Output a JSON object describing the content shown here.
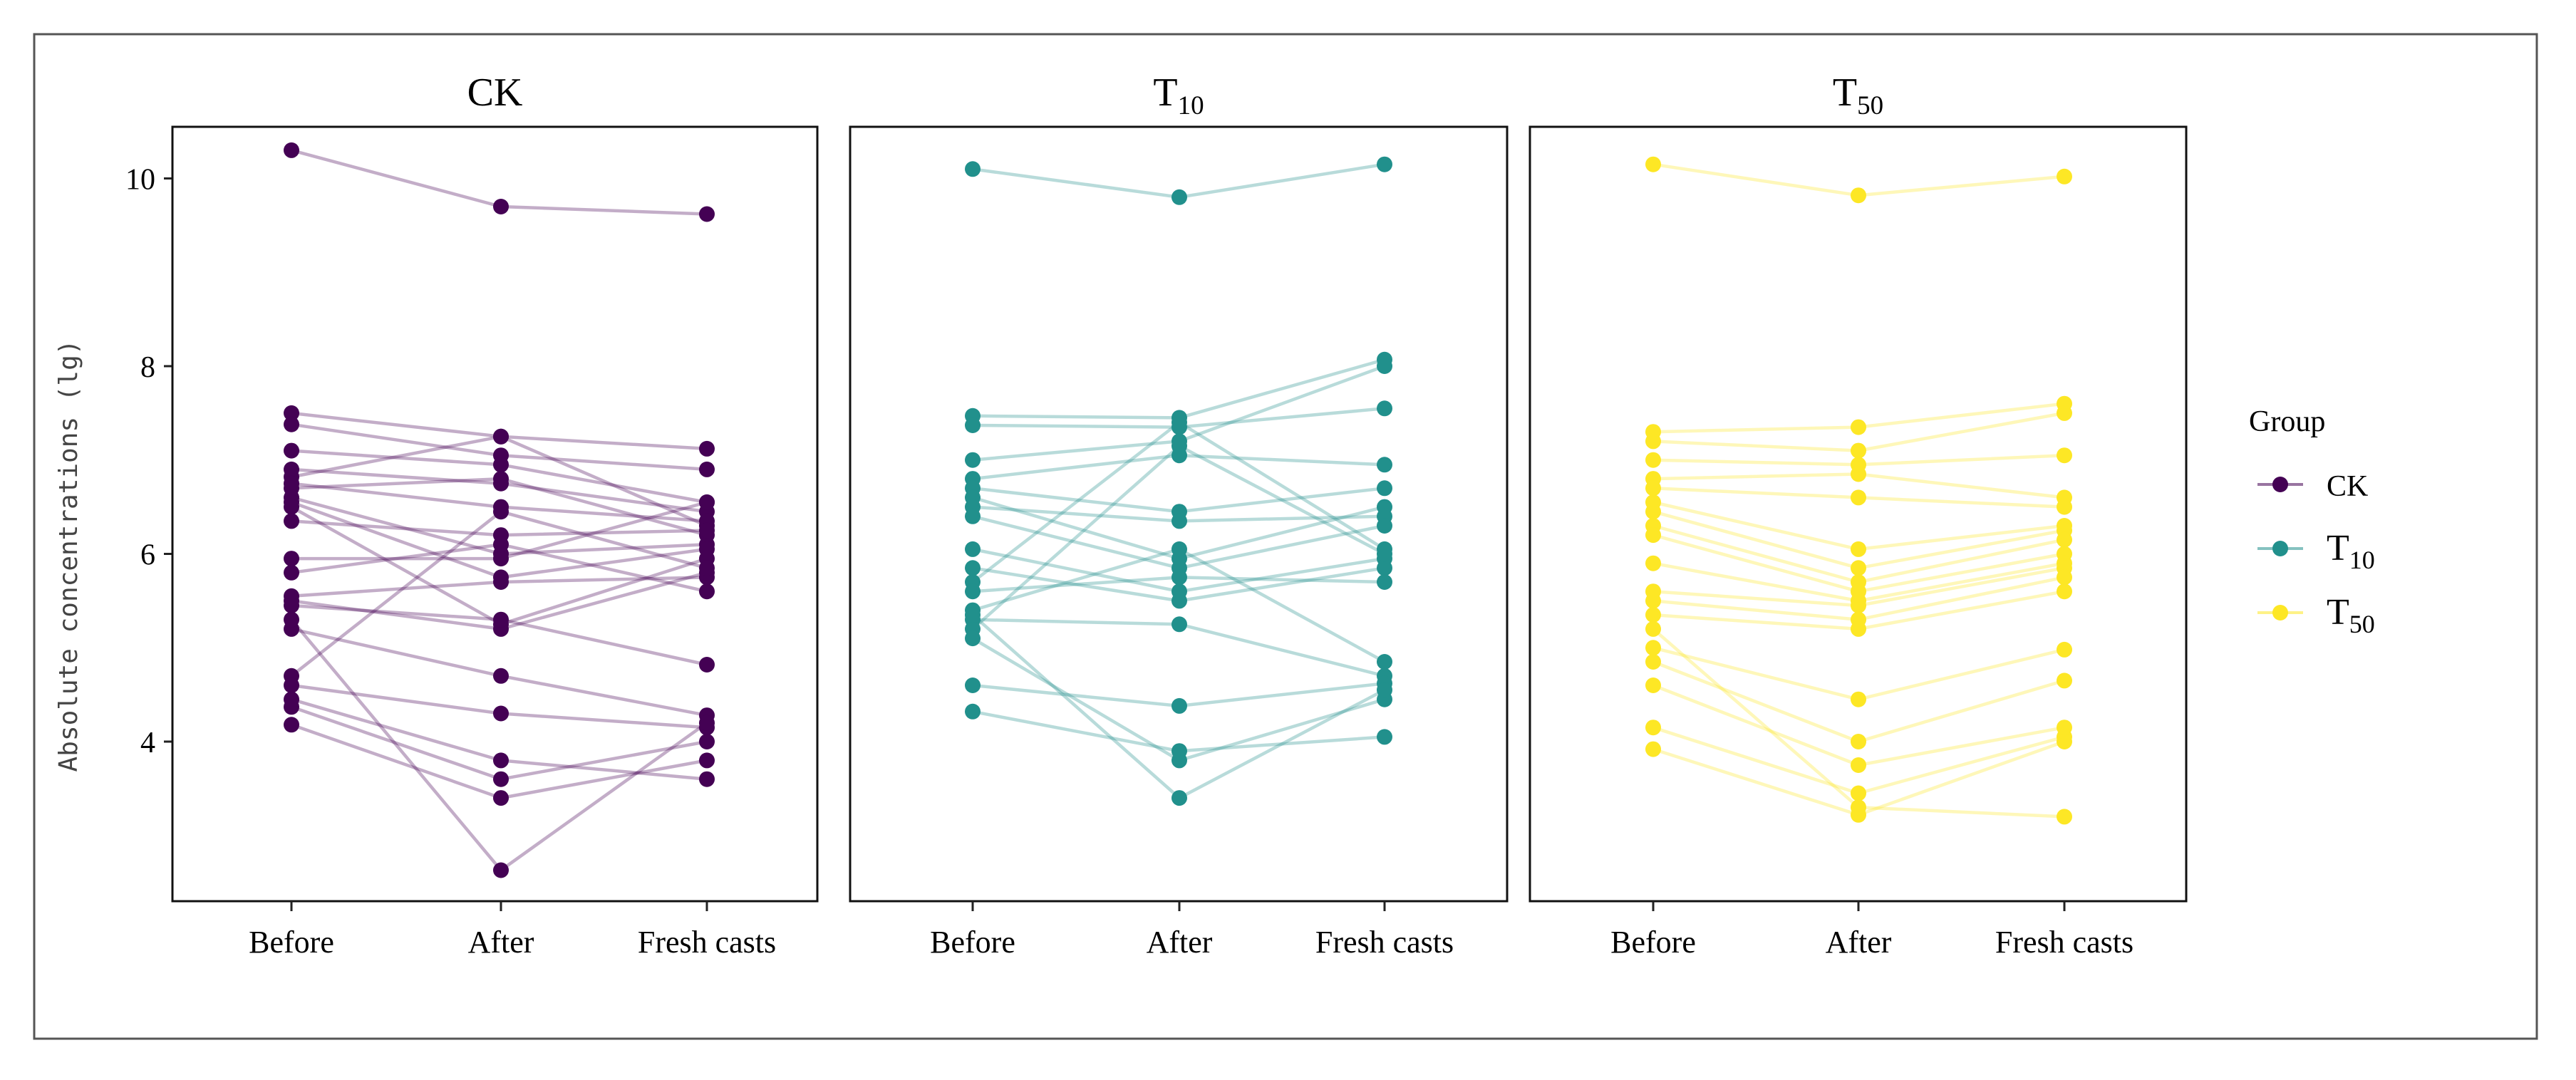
{
  "chart_data": {
    "type": "line",
    "ylabel": "Absolute concentrations (lg)",
    "y_ticks": [
      4,
      6,
      8,
      10
    ],
    "ylim": [
      2.3,
      10.55
    ],
    "categories": [
      "Before",
      "After",
      "Fresh casts"
    ],
    "legend": {
      "title": "Group",
      "placement": "right",
      "entries": [
        {
          "key": "ck",
          "label_main": "CK",
          "label_sub": "",
          "color": "#440154"
        },
        {
          "key": "t10",
          "label_main": "T",
          "label_sub": "10",
          "color": "#21908C"
        },
        {
          "key": "t50",
          "label_main": "T",
          "label_sub": "50",
          "color": "#FDE725"
        }
      ]
    },
    "panels": [
      {
        "key": "ck",
        "title_main": "CK",
        "title_sub": "",
        "color": "#440154",
        "series": [
          [
            10.3,
            9.7,
            9.62
          ],
          [
            7.5,
            7.25,
            7.12
          ],
          [
            7.38,
            7.05,
            6.9
          ],
          [
            7.1,
            6.95,
            6.55
          ],
          [
            6.9,
            6.75,
            6.45
          ],
          [
            6.82,
            7.25,
            6.3
          ],
          [
            6.75,
            6.5,
            6.35
          ],
          [
            6.7,
            6.8,
            6.2
          ],
          [
            6.6,
            6.0,
            6.1
          ],
          [
            6.55,
            5.75,
            6.05
          ],
          [
            6.5,
            5.25,
            5.95
          ],
          [
            6.35,
            6.2,
            6.25
          ],
          [
            5.95,
            5.95,
            6.55
          ],
          [
            5.8,
            6.1,
            5.6
          ],
          [
            5.55,
            5.7,
            5.75
          ],
          [
            5.5,
            5.2,
            5.8
          ],
          [
            5.45,
            5.3,
            4.82
          ],
          [
            5.2,
            4.7,
            4.28
          ],
          [
            4.7,
            6.45,
            5.85
          ],
          [
            4.6,
            4.3,
            4.15
          ],
          [
            4.45,
            3.8,
            3.6
          ],
          [
            4.37,
            3.6,
            4.0
          ],
          [
            4.18,
            3.4,
            3.8
          ],
          [
            5.3,
            2.63,
            4.2
          ]
        ]
      },
      {
        "key": "t10",
        "title_main": "T",
        "title_sub": "10",
        "color": "#21908C",
        "series": [
          [
            10.1,
            9.8,
            10.15
          ],
          [
            7.47,
            7.45,
            8.07
          ],
          [
            7.37,
            7.35,
            7.55
          ],
          [
            7.0,
            7.2,
            8.0
          ],
          [
            6.8,
            7.05,
            6.95
          ],
          [
            6.7,
            6.45,
            6.7
          ],
          [
            6.6,
            5.95,
            6.5
          ],
          [
            6.5,
            6.35,
            6.4
          ],
          [
            6.4,
            5.85,
            6.3
          ],
          [
            6.05,
            5.6,
            5.95
          ],
          [
            5.85,
            5.5,
            5.85
          ],
          [
            5.7,
            7.4,
            6.05
          ],
          [
            5.6,
            5.75,
            5.7
          ],
          [
            5.4,
            6.05,
            4.85
          ],
          [
            5.3,
            5.25,
            4.7
          ],
          [
            5.2,
            7.15,
            6.0
          ],
          [
            5.1,
            3.8,
            4.45
          ],
          [
            4.6,
            4.38,
            4.62
          ],
          [
            4.32,
            3.9,
            4.05
          ],
          [
            5.35,
            3.4,
            4.55
          ]
        ]
      },
      {
        "key": "t50",
        "title_main": "T",
        "title_sub": "50",
        "color": "#FDE725",
        "series": [
          [
            10.15,
            9.82,
            10.02
          ],
          [
            7.3,
            7.35,
            7.6
          ],
          [
            7.2,
            7.1,
            7.5
          ],
          [
            7.0,
            6.95,
            7.05
          ],
          [
            6.8,
            6.85,
            6.6
          ],
          [
            6.7,
            6.6,
            6.5
          ],
          [
            6.55,
            6.05,
            6.3
          ],
          [
            6.45,
            5.85,
            6.25
          ],
          [
            6.3,
            5.7,
            6.15
          ],
          [
            6.2,
            5.6,
            6.0
          ],
          [
            5.9,
            5.5,
            5.9
          ],
          [
            5.6,
            5.45,
            5.85
          ],
          [
            5.5,
            5.3,
            5.75
          ],
          [
            5.35,
            5.2,
            5.6
          ],
          [
            5.0,
            4.45,
            4.98
          ],
          [
            4.85,
            4.0,
            4.65
          ],
          [
            4.6,
            3.75,
            4.15
          ],
          [
            4.15,
            3.45,
            4.05
          ],
          [
            3.92,
            3.22,
            4.0
          ],
          [
            5.2,
            3.3,
            3.2
          ]
        ]
      }
    ]
  }
}
